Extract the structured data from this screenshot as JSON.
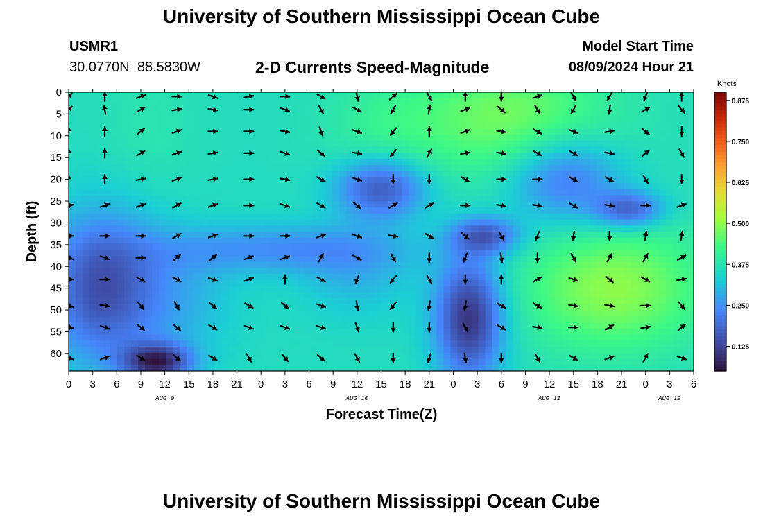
{
  "chart_data": {
    "type": "heatmap",
    "title": "University of Southern Mississippi Ocean Cube",
    "subtitle": "2-D Currents Speed-Magnitude",
    "station": "USMR1",
    "location": "30.0770N  88.5830W",
    "model_start_label": "Model Start Time",
    "model_start_value": "08/09/2024 Hour 21",
    "xlabel": "Forecast Time(Z)",
    "ylabel": "Depth (ft)",
    "x_range": [
      0,
      78
    ],
    "y_range": [
      0,
      64
    ],
    "x_tick_labels": [
      "0",
      "3",
      "6",
      "9",
      "12",
      "15",
      "18",
      "21",
      "0",
      "3",
      "6",
      "9",
      "12",
      "15",
      "18",
      "21",
      "0",
      "3",
      "6",
      "9",
      "12",
      "15",
      "18",
      "21",
      "0",
      "3",
      "6"
    ],
    "y_tick_labels": [
      "0",
      "5",
      "10",
      "15",
      "20",
      "25",
      "30",
      "35",
      "40",
      "45",
      "50",
      "55",
      "60"
    ],
    "date_labels": [
      {
        "text": "AUG 9",
        "hour": 12
      },
      {
        "text": "AUG 10",
        "hour": 36
      },
      {
        "text": "AUG 11",
        "hour": 60
      },
      {
        "text": "AUG 12",
        "hour": 75
      }
    ],
    "colorbar": {
      "unit": "Knots",
      "ticks": [
        "0.125",
        "0.250",
        "0.375",
        "0.500",
        "0.625",
        "0.750",
        "0.875"
      ],
      "range": [
        0.05,
        0.9
      ]
    },
    "speed_blobs": [
      {
        "h": 10,
        "d": 8,
        "sh": 4,
        "sd": 10,
        "v": 0.38
      },
      {
        "h": 39,
        "d": 10,
        "sh": 5,
        "sd": 10,
        "v": 0.4
      },
      {
        "h": 39,
        "d": 22,
        "sh": 4,
        "sd": 5,
        "v": 0.15
      },
      {
        "h": 4,
        "d": 45,
        "sh": 5,
        "sd": 12,
        "v": 0.15
      },
      {
        "h": 14,
        "d": 48,
        "sh": 5,
        "sd": 10,
        "v": 0.3
      },
      {
        "h": 11,
        "d": 62,
        "sh": 3,
        "sd": 3,
        "v": 0.1
      },
      {
        "h": 26,
        "d": 36,
        "sh": 11,
        "sd": 4,
        "sv": 0,
        "v": 0.25
      },
      {
        "h": 55,
        "d": 6,
        "sh": 9,
        "sd": 10,
        "v": 0.48
      },
      {
        "h": 62,
        "d": 20,
        "sh": 5,
        "sd": 7,
        "v": 0.2
      },
      {
        "h": 70,
        "d": 27,
        "sh": 3,
        "sd": 3,
        "v": 0.18
      },
      {
        "h": 52,
        "d": 33,
        "sh": 3,
        "sd": 3,
        "v": 0.18
      },
      {
        "h": 68,
        "d": 45,
        "sh": 8,
        "sd": 10,
        "v": 0.5
      },
      {
        "h": 36,
        "d": 42,
        "sh": 5,
        "sd": 7,
        "v": 0.3
      },
      {
        "h": 50,
        "d": 52,
        "sh": 3,
        "sd": 10,
        "v": 0.1
      }
    ],
    "arrow_grid": {
      "hours": [
        0,
        4.5,
        9,
        13.5,
        18,
        22.5,
        27,
        31.5,
        36,
        40.5,
        45,
        49.5,
        54,
        58.5,
        63,
        67.5,
        72,
        76.5
      ],
      "depths": [
        1,
        4,
        9,
        14,
        20,
        26,
        33,
        38,
        43,
        49,
        54,
        61
      ],
      "angles_deg": [
        [
          45,
          90,
          20,
          0,
          -20,
          10,
          0,
          -30,
          -80,
          40,
          -60,
          90,
          -90,
          20,
          -60,
          -120,
          -110,
          90
        ],
        [
          45,
          100,
          30,
          10,
          -10,
          0,
          -20,
          -60,
          -30,
          -120,
          80,
          20,
          -40,
          -60,
          -120,
          -100,
          30,
          -50
        ],
        [
          90,
          90,
          40,
          20,
          0,
          0,
          -10,
          -70,
          -20,
          -130,
          90,
          20,
          -10,
          -30,
          -20,
          10,
          -40,
          -90
        ],
        [
          90,
          90,
          30,
          20,
          10,
          0,
          -20,
          -40,
          -10,
          -130,
          60,
          10,
          -10,
          -30,
          -30,
          -10,
          40,
          -60
        ],
        [
          90,
          90,
          10,
          20,
          10,
          0,
          -10,
          -30,
          -20,
          -90,
          -90,
          -30,
          0,
          0,
          -30,
          -30,
          -60,
          -90
        ],
        [
          10,
          20,
          20,
          30,
          20,
          0,
          -20,
          -30,
          -40,
          30,
          30,
          0,
          -10,
          -10,
          -30,
          -10,
          0,
          20
        ],
        [
          0,
          0,
          0,
          30,
          20,
          0,
          0,
          20,
          -20,
          -10,
          -30,
          -40,
          -60,
          -110,
          -100,
          -90,
          80,
          80
        ],
        [
          -20,
          -20,
          0,
          40,
          40,
          20,
          20,
          60,
          -30,
          -60,
          -90,
          -110,
          -80,
          -90,
          -60,
          60,
          60,
          30
        ],
        [
          0,
          0,
          -30,
          -30,
          -20,
          20,
          90,
          -30,
          -110,
          -130,
          -60,
          -90,
          90,
          30,
          -20,
          -40,
          -30,
          10
        ],
        [
          -20,
          -10,
          -50,
          -60,
          -40,
          -30,
          -40,
          -20,
          -80,
          -130,
          -100,
          -100,
          -30,
          -30,
          -10,
          -10,
          0,
          -50
        ],
        [
          -10,
          -20,
          -40,
          -40,
          -30,
          -20,
          -20,
          -20,
          -70,
          -90,
          -90,
          -60,
          -30,
          -10,
          0,
          30,
          10,
          40
        ],
        [
          -20,
          20,
          -30,
          -40,
          -30,
          -60,
          -50,
          -40,
          -60,
          -90,
          -110,
          -80,
          -90,
          -60,
          -30,
          20,
          60,
          -20
        ]
      ]
    }
  }
}
